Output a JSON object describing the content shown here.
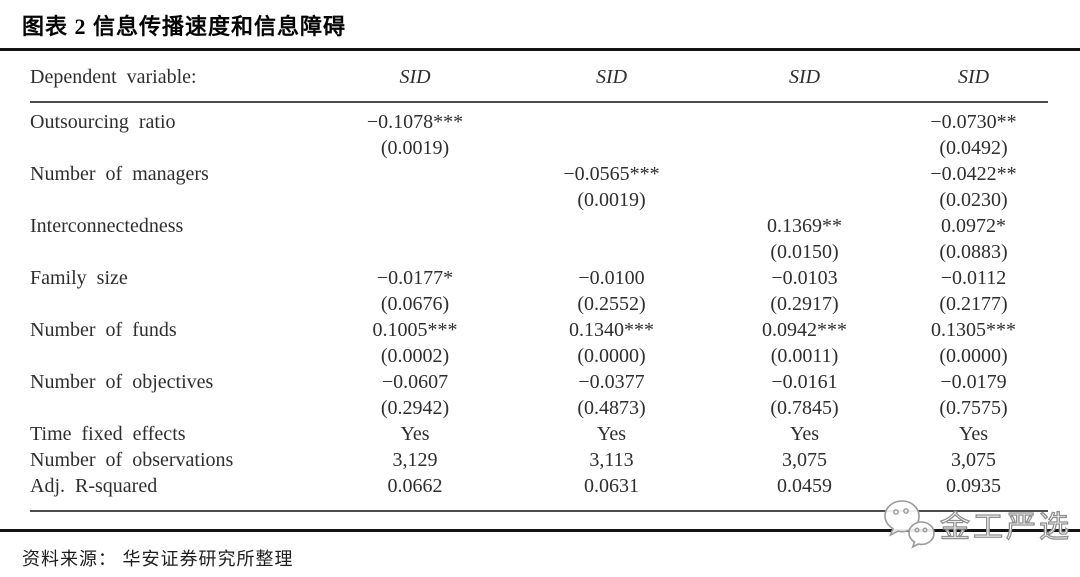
{
  "title": "图表 2 信息传播速度和信息障碍",
  "source": "资料来源： 华安证券研究所整理",
  "watermark": {
    "icon": "wechat-bubbles-icon",
    "text": "金工严选"
  },
  "colors": {
    "background": "#ffffff",
    "text": "#2e2e2e",
    "thick_rule": "#141414",
    "thin_rule": "#4d4d4d",
    "watermark_stroke": "#8f8f8f"
  },
  "table": {
    "header": {
      "label": "Dependent variable:",
      "columns": [
        "SID",
        "SID",
        "SID",
        "SID"
      ]
    },
    "variable_rows": [
      {
        "label": "Outsourcing ratio",
        "cells": [
          {
            "coef": "−0.1078***",
            "p": "(0.0019)"
          },
          null,
          null,
          {
            "coef": "−0.0730**",
            "p": "(0.0492)"
          }
        ]
      },
      {
        "label": "Number of managers",
        "cells": [
          null,
          {
            "coef": "−0.0565***",
            "p": "(0.0019)"
          },
          null,
          {
            "coef": "−0.0422**",
            "p": "(0.0230)"
          }
        ]
      },
      {
        "label": "Interconnectedness",
        "cells": [
          null,
          null,
          {
            "coef": "0.1369**",
            "p": "(0.0150)"
          },
          {
            "coef": "0.0972*",
            "p": "(0.0883)"
          }
        ]
      },
      {
        "label": "Family size",
        "cells": [
          {
            "coef": "−0.0177*",
            "p": "(0.0676)"
          },
          {
            "coef": "−0.0100",
            "p": "(0.2552)"
          },
          {
            "coef": "−0.0103",
            "p": "(0.2917)"
          },
          {
            "coef": "−0.0112",
            "p": "(0.2177)"
          }
        ]
      },
      {
        "label": "Number of funds",
        "cells": [
          {
            "coef": "0.1005***",
            "p": "(0.0002)"
          },
          {
            "coef": "0.1340***",
            "p": "(0.0000)"
          },
          {
            "coef": "0.0942***",
            "p": "(0.0011)"
          },
          {
            "coef": "0.1305***",
            "p": "(0.0000)"
          }
        ]
      },
      {
        "label": "Number of objectives",
        "cells": [
          {
            "coef": "−0.0607",
            "p": "(0.2942)"
          },
          {
            "coef": "−0.0377",
            "p": "(0.4873)"
          },
          {
            "coef": "−0.0161",
            "p": "(0.7845)"
          },
          {
            "coef": "−0.0179",
            "p": "(0.7575)"
          }
        ]
      }
    ],
    "stat_rows": [
      {
        "label": "Time fixed effects",
        "values": [
          "Yes",
          "Yes",
          "Yes",
          "Yes"
        ]
      },
      {
        "label": "Number of observations",
        "values": [
          "3,129",
          "3,113",
          "3,075",
          "3,075"
        ]
      },
      {
        "label": "Adj. R-squared",
        "values": [
          "0.0662",
          "0.0631",
          "0.0459",
          "0.0935"
        ]
      }
    ]
  }
}
